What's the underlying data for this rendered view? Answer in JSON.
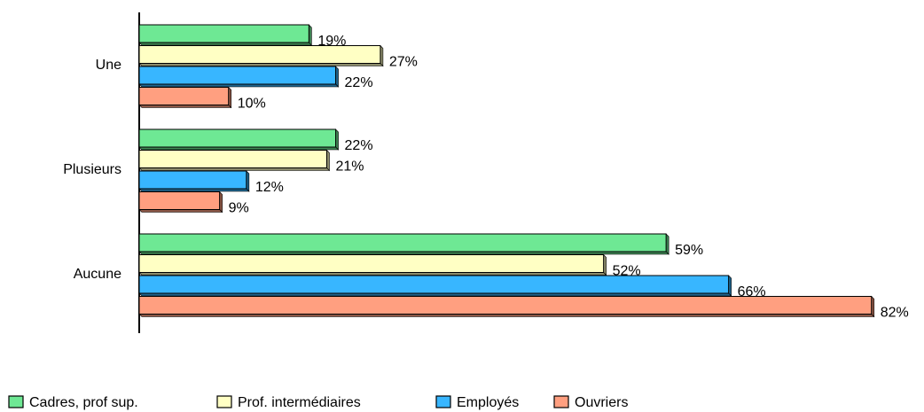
{
  "chart_data": {
    "type": "bar",
    "orientation": "horizontal",
    "categories": [
      "Une",
      "Plusieurs",
      "Aucune"
    ],
    "series": [
      {
        "name": "Cadres, prof sup.",
        "color": "#6ee894",
        "values": [
          19,
          22,
          59
        ],
        "value_labels": [
          "19%",
          "22%",
          "59%"
        ]
      },
      {
        "name": "Prof. intermédiaires",
        "color": "#ffffc4",
        "values": [
          27,
          21,
          52
        ],
        "value_labels": [
          "27%",
          "21%",
          "52%"
        ]
      },
      {
        "name": "Employés",
        "color": "#38b6ff",
        "values": [
          22,
          12,
          66
        ],
        "value_labels": [
          "22%",
          "12%",
          "66%"
        ]
      },
      {
        "name": "Ouvriers",
        "color": "#ff9f80",
        "values": [
          10,
          9,
          82
        ],
        "value_labels": [
          "10%",
          "9%",
          "82%"
        ]
      }
    ],
    "legend": "bottom"
  }
}
